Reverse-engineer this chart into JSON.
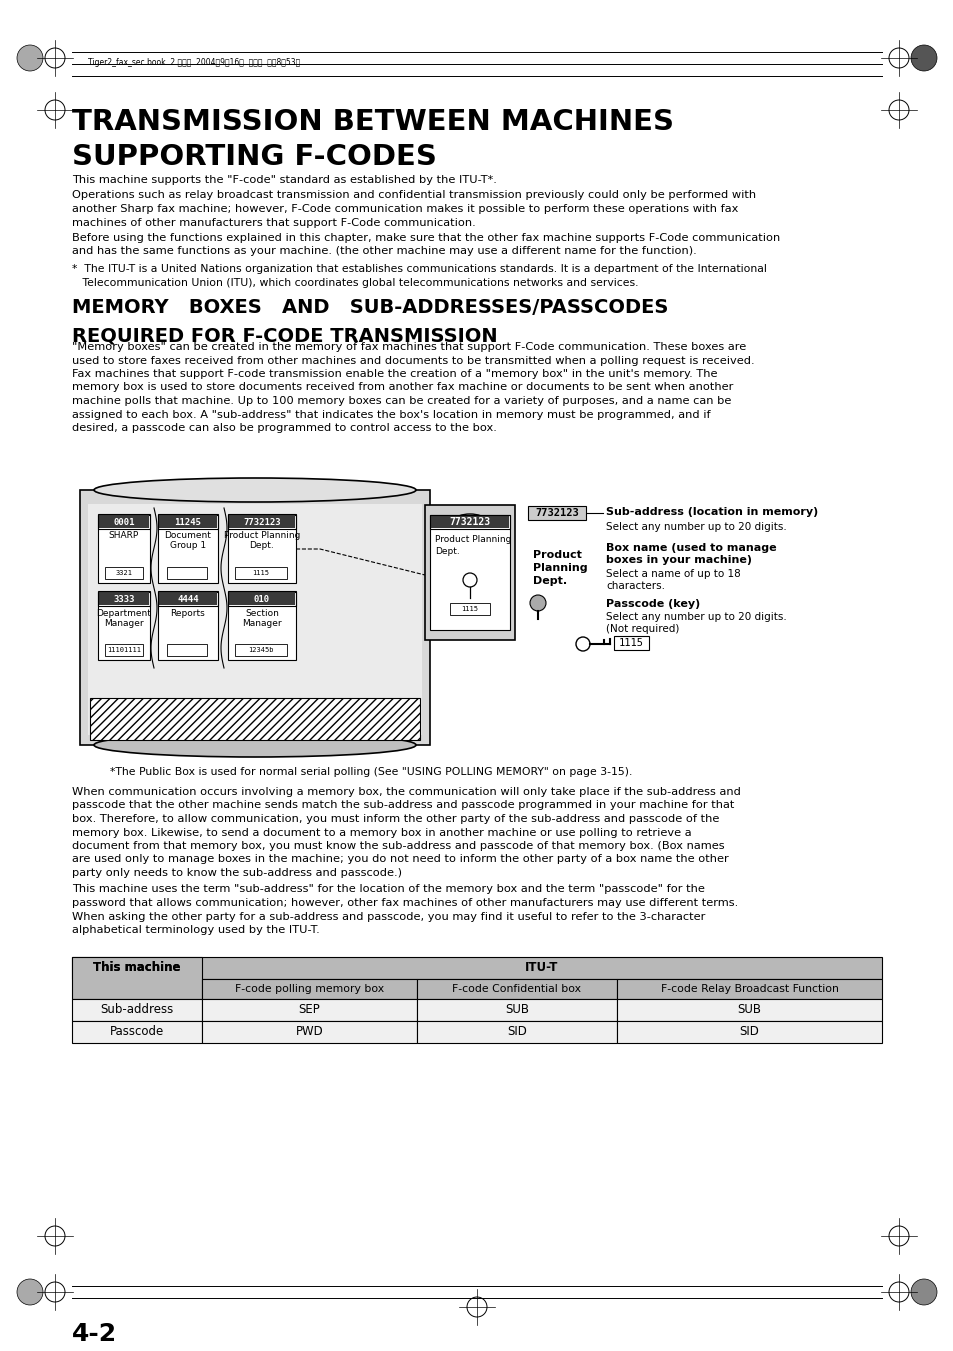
{
  "title_line1": "TRANSMISSION BETWEEN MACHINES",
  "title_line2": "SUPPORTING F-CODES",
  "section2_line1": "MEMORY   BOXES   AND   SUB-ADDRESSES/PASSCODES",
  "section2_line2": "REQUIRED FOR F-CODE TRANSMISSION",
  "header_text": "Tiger2_fax_sec.book  2 ページ  2004年9月16日  木曜日  午前8時53分",
  "para1": "This machine supports the \"F-code\" standard as established by the ITU-T*.",
  "para2_l1": "Operations such as relay broadcast transmission and confidential transmission previously could only be performed with",
  "para2_l2": "another Sharp fax machine; however, F-Code communication makes it possible to perform these operations with fax",
  "para2_l3": "machines of other manufacturers that support F-Code communication.",
  "para3_l1": "Before using the functions explained in this chapter, make sure that the other fax machine supports F-Code communication",
  "para3_l2": "and has the same functions as your machine. (the other machine may use a different name for the function).",
  "fn1_l1": "*  The ITU-T is a United Nations organization that establishes communications standards. It is a department of the International",
  "fn1_l2": "   Telecommunication Union (ITU), which coordinates global telecommunications networks and services.",
  "memory_label": "MEMORY",
  "footnote2": "*The Public Box is used for normal serial polling (See \"USING POLLING MEMORY\" on page 3-15).",
  "body1_l1": "When communication occurs involving a memory box, the communication will only take place if the sub-address and",
  "body1_l2": "passcode that the other machine sends match the sub-address and passcode programmed in your machine for that",
  "body1_l3": "box. Therefore, to allow communication, you must inform the other party of the sub-address and passcode of the",
  "body1_l4": "memory box. Likewise, to send a document to a memory box in another machine or use polling to retrieve a",
  "body1_l5": "document from that memory box, you must know the sub-address and passcode of that memory box. (Box names",
  "body1_l6": "are used only to manage boxes in the machine; you do not need to inform the other party of a box name the other",
  "body1_l7": "party only needs to know the sub-address and passcode.)",
  "body2_l1": "This machine uses the term \"sub-address\" for the location of the memory box and the term \"passcode\" for the",
  "body2_l2": "password that allows communication; however, other fax machines of other manufacturers may use different terms.",
  "body2_l3": "When asking the other party for a sub-address and passcode, you may find it useful to refer to the 3-character",
  "body2_l4": "alphabetical terminology used by the ITU-T.",
  "sub_addr_label": "7732123",
  "sub_addr_desc1": "Sub-address (location in memory)",
  "sub_addr_desc2": "Select any number up to 20 digits.",
  "box_name_label1": "Box name (used to manage",
  "box_name_label2": "boxes in your machine)",
  "box_name_desc1": "Select a name of up to 18",
  "box_name_desc2": "characters.",
  "passcode_label": "Passcode (key)",
  "passcode_desc1": "Select any number up to 20 digits.",
  "passcode_desc2": "(Not required)",
  "passcode_num": "1115",
  "table_header_col1": "This machine",
  "table_header_col2": "ITU-T",
  "table_col2a": "F-code polling memory box",
  "table_col2b": "F-code Confidential box",
  "table_col2c": "F-code Relay Broadcast Function",
  "table_row1_col1": "Sub-address",
  "table_row1_col2a": "SEP",
  "table_row1_col2b": "SUB",
  "table_row1_col2c": "SUB",
  "table_row2_col1": "Passcode",
  "table_row2_col2a": "PWD",
  "table_row2_col2b": "SID",
  "table_row2_col2c": "SID",
  "page_num": "4-2",
  "bg_color": "#ffffff",
  "table_header_bg": "#b8b8b8",
  "table_row_bg": "#f0f0f0"
}
